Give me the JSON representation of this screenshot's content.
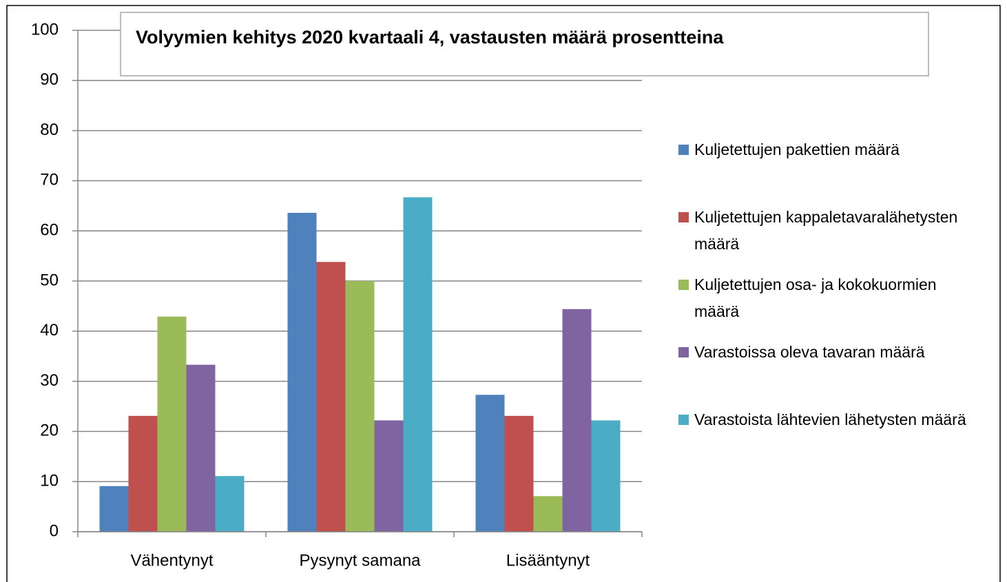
{
  "chart_data": {
    "type": "bar",
    "title": "Volyymien kehitys 2020 kvartaali 4, vastausten määrä prosentteina",
    "categories": [
      "Vähentynyt",
      "Pysynyt samana",
      "Lisääntynyt"
    ],
    "series": [
      {
        "name": "Kuljetettujen pakettien määrä",
        "color": "#4f81bd",
        "values": [
          9.1,
          63.6,
          27.3
        ]
      },
      {
        "name": "Kuljetettujen kappaletavaralähetysten määrä",
        "color": "#c0504d",
        "values": [
          23.1,
          53.8,
          23.1
        ]
      },
      {
        "name": "Kuljetettujen osa- ja kokokuormien määrä",
        "color": "#9bbb59",
        "values": [
          42.9,
          50,
          7.1
        ]
      },
      {
        "name": "Varastoissa oleva tavaran määrä",
        "color": "#8064a2",
        "values": [
          33.3,
          22.2,
          44.4
        ]
      },
      {
        "name": "Varastoista lähtevien lähetysten määrä",
        "color": "#4bacc6",
        "values": [
          11.1,
          66.7,
          22.2
        ]
      }
    ],
    "ylim": [
      0,
      100
    ],
    "yticks": [
      0,
      10,
      20,
      30,
      40,
      50,
      60,
      70,
      80,
      90,
      100
    ],
    "grid": true,
    "legend": "right"
  }
}
